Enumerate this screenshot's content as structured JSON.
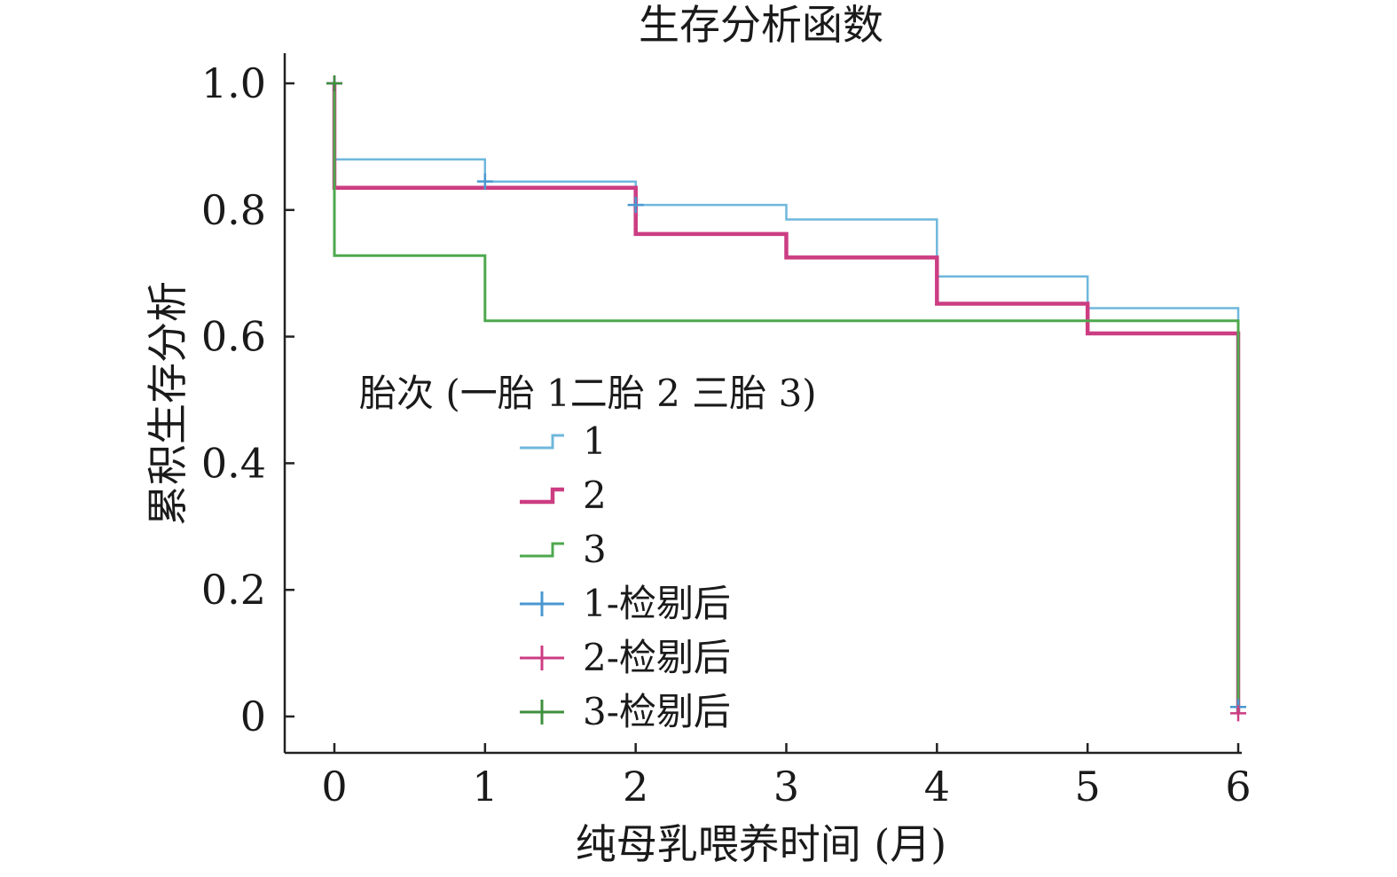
{
  "chart_data": {
    "type": "line",
    "step": true,
    "title": "生存分析函数",
    "xlabel": "纯母乳喂养时间 (月)",
    "ylabel": "累积生存分析",
    "xlim": [
      0,
      6
    ],
    "ylim": [
      0,
      1.0
    ],
    "x_ticks": [
      "0",
      "1",
      "2",
      "3",
      "4",
      "5",
      "6"
    ],
    "y_ticks": [
      "0",
      "0.2",
      "0.4",
      "0.6",
      "0.8",
      "1.0"
    ],
    "grid": false,
    "legend": {
      "title": "胎次 (一胎 1二胎 2 三胎 3)",
      "placement": "center-left",
      "entries": [
        "1",
        "2",
        "3",
        "1-检剔后",
        "2-检剔后",
        "3-检剔后"
      ]
    },
    "series": [
      {
        "name": "1",
        "color": "#6fb7dc",
        "x": [
          0,
          0,
          1,
          1,
          2,
          2,
          3,
          3,
          4,
          4,
          5,
          5,
          6,
          6
        ],
        "y": [
          1.0,
          0.88,
          0.88,
          0.845,
          0.845,
          0.808,
          0.808,
          0.785,
          0.785,
          0.695,
          0.695,
          0.645,
          0.645,
          0.015
        ]
      },
      {
        "name": "2",
        "color": "#cc3d82",
        "x": [
          0,
          0,
          2,
          2,
          3,
          3,
          4,
          4,
          5,
          5,
          6,
          6
        ],
        "y": [
          1.0,
          0.835,
          0.835,
          0.762,
          0.762,
          0.725,
          0.725,
          0.652,
          0.652,
          0.605,
          0.605,
          0.005
        ]
      },
      {
        "name": "3",
        "color": "#4ea84e",
        "x": [
          0,
          0,
          1,
          1,
          6,
          6
        ],
        "y": [
          1.0,
          0.728,
          0.728,
          0.625,
          0.625,
          0.005
        ]
      }
    ],
    "censored": [
      {
        "name": "1-检剔后",
        "color": "#4a98d0",
        "x": [
          0,
          1,
          2,
          6
        ],
        "y": [
          1.0,
          0.845,
          0.808,
          0.015
        ]
      },
      {
        "name": "2-检剔后",
        "color": "#cc3d82",
        "x": [
          0,
          6
        ],
        "y": [
          1.0,
          0.005
        ]
      },
      {
        "name": "3-检剔后",
        "color": "#3e8f3e",
        "x": [
          0
        ],
        "y": [
          1.0
        ]
      }
    ]
  }
}
